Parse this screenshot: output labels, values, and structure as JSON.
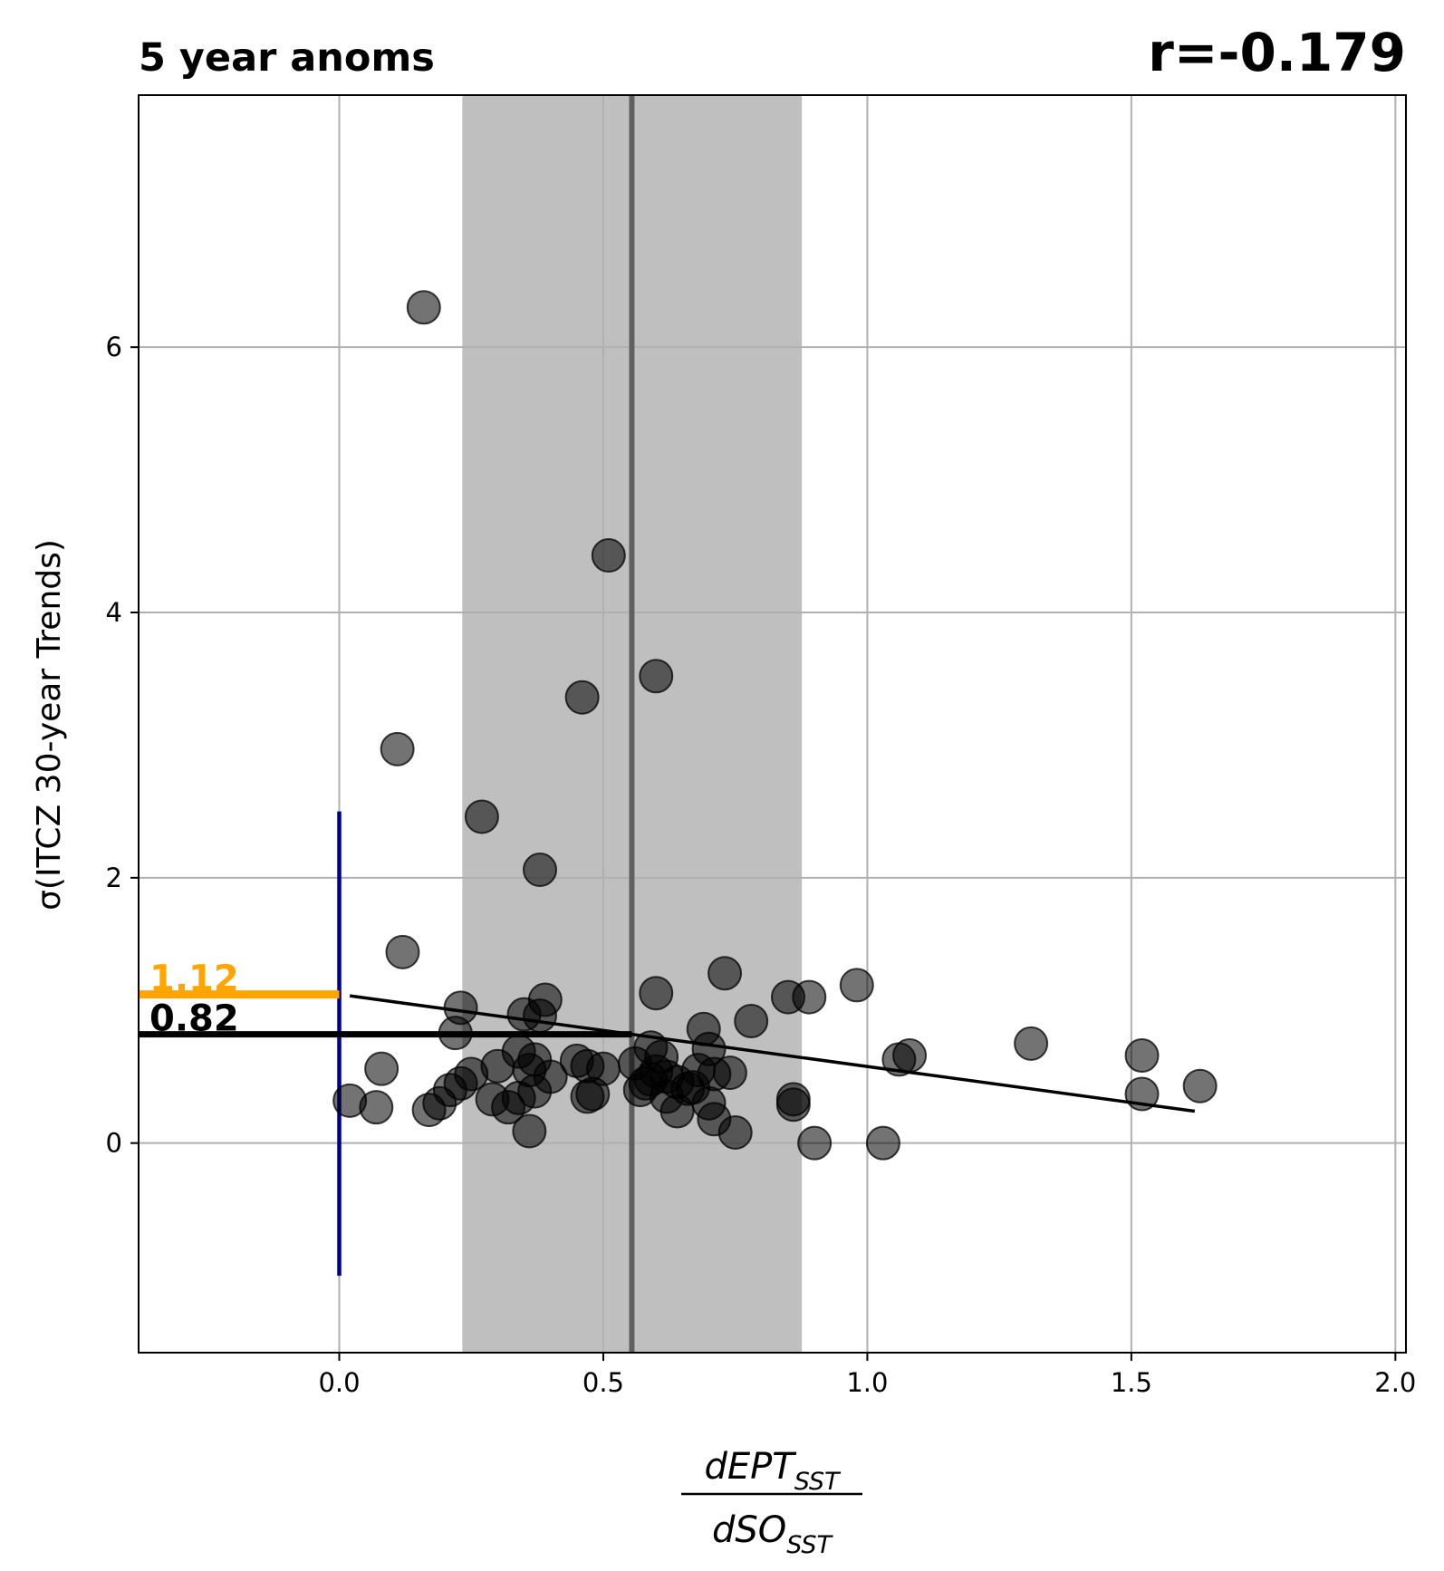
{
  "chart_data": {
    "type": "scatter",
    "title": "5 year anoms",
    "title_right": "r=-0.179",
    "ylabel": "σ(ITCZ 30-year Trends)",
    "xlabel_numerator": "dEPT",
    "xlabel_numerator_sub": "SST",
    "xlabel_denominator": "dSO",
    "xlabel_denominator_sub": "SST",
    "xlim": [
      -0.38,
      2.02
    ],
    "ylim": [
      -1.58,
      7.9
    ],
    "xticks": [
      0.0,
      0.5,
      1.0,
      1.5,
      2.0
    ],
    "xtick_labels": [
      "0.0",
      "0.5",
      "1.0",
      "1.5",
      "2.0"
    ],
    "yticks": [
      0,
      2,
      4,
      6
    ],
    "ytick_labels": [
      "0",
      "2",
      "4",
      "6"
    ],
    "grid": true,
    "shaded_band": {
      "x_from": 0.233,
      "x_to": 0.876,
      "color": "#bfbfbf"
    },
    "center_line": {
      "x": 0.554,
      "color": "#606060"
    },
    "zero_line": {
      "x": 0.0,
      "y_from": -1.0,
      "y_to": 2.5,
      "color": "#00008b"
    },
    "regression_line": {
      "x": [
        0.02,
        1.62
      ],
      "y": [
        1.11,
        0.24
      ],
      "color": "#000000"
    },
    "annotations": [
      {
        "label": "1.12",
        "y": 1.12,
        "color": "#ffa500"
      },
      {
        "label": "0.82",
        "y": 0.82,
        "color": "#000000"
      }
    ],
    "points": {
      "color": "#000000",
      "alpha": 0.55,
      "x": [
        0.16,
        0.51,
        0.6,
        0.46,
        0.11,
        0.27,
        0.38,
        0.12,
        0.6,
        0.73,
        0.98,
        0.78,
        0.85,
        0.89,
        0.39,
        0.23,
        0.22,
        0.35,
        0.38,
        0.69,
        1.31,
        1.52,
        1.52,
        1.63,
        1.06,
        1.08,
        0.59,
        0.61,
        0.08,
        0.25,
        0.3,
        0.34,
        0.36,
        0.37,
        0.4,
        0.45,
        0.47,
        0.5,
        0.56,
        0.58,
        0.59,
        0.6,
        0.62,
        0.64,
        0.66,
        0.68,
        0.7,
        0.71,
        0.74,
        0.02,
        0.07,
        0.17,
        0.19,
        0.21,
        0.23,
        0.29,
        0.32,
        0.34,
        0.37,
        0.47,
        0.48,
        0.57,
        0.62,
        0.67,
        0.7,
        0.86,
        0.86,
        0.64,
        0.71,
        0.75,
        0.36,
        0.9,
        1.03
      ],
      "y": [
        6.3,
        4.43,
        3.52,
        3.36,
        2.97,
        2.46,
        2.06,
        1.44,
        1.13,
        1.28,
        1.19,
        0.92,
        1.1,
        1.1,
        1.08,
        1.02,
        0.83,
        0.97,
        0.96,
        0.86,
        0.75,
        0.66,
        0.37,
        0.43,
        0.63,
        0.66,
        0.72,
        0.65,
        0.56,
        0.52,
        0.58,
        0.69,
        0.55,
        0.63,
        0.5,
        0.62,
        0.58,
        0.56,
        0.6,
        0.45,
        0.48,
        0.54,
        0.5,
        0.46,
        0.41,
        0.55,
        0.71,
        0.52,
        0.53,
        0.32,
        0.27,
        0.25,
        0.3,
        0.4,
        0.45,
        0.33,
        0.27,
        0.34,
        0.39,
        0.35,
        0.37,
        0.4,
        0.35,
        0.42,
        0.3,
        0.33,
        0.29,
        0.24,
        0.18,
        0.08,
        0.09,
        0.0,
        0.0
      ]
    }
  }
}
